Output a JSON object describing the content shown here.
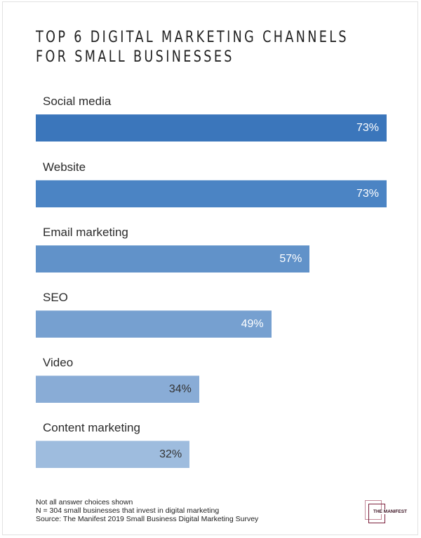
{
  "title": {
    "line1": "TOP 6 DIGITAL MARKETING CHANNELS",
    "line2": "FOR SMALL BUSINESSES"
  },
  "chart_data": {
    "type": "bar",
    "orientation": "horizontal",
    "title": "Top 6 Digital Marketing Channels for Small Businesses",
    "categories": [
      "Social media",
      "Website",
      "Email marketing",
      "SEO",
      "Video",
      "Content marketing"
    ],
    "values": [
      73,
      73,
      57,
      49,
      34,
      32
    ],
    "value_labels": [
      "73%",
      "73%",
      "57%",
      "49%",
      "34%",
      "32%"
    ],
    "unit": "%",
    "xlabel": "",
    "ylabel": "",
    "grid": false,
    "legend": "none",
    "colors": [
      "#3b76bb",
      "#4b84c4",
      "#6192c9",
      "#76a0d0",
      "#89acd6",
      "#9ebcde"
    ]
  },
  "footnotes": {
    "note": "Not all answer choices shown",
    "sample": "N = 304 small businesses that invest in digital marketing",
    "source": "Source: The Manifest 2019 Small Business Digital Marketing Survey"
  },
  "logo": {
    "text": "THE MANIFEST",
    "colors": {
      "outer": "#c48a9a",
      "inner": "#7a1e3a"
    }
  }
}
